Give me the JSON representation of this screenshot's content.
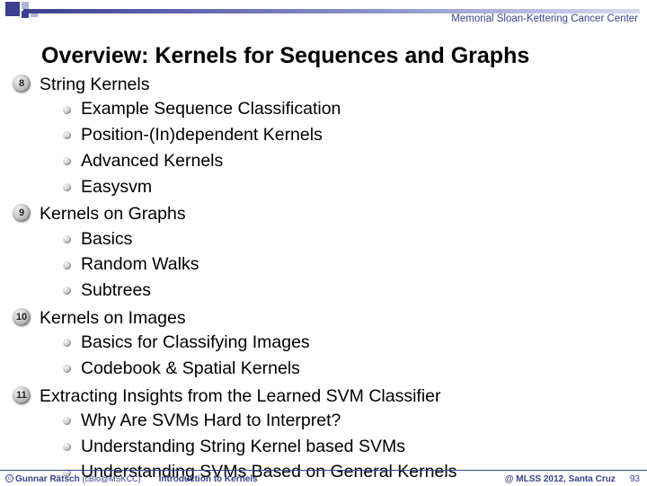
{
  "header": {
    "org": "Memorial Sloan-Kettering Cancer Center"
  },
  "title": "Overview: Kernels for Sequences and Graphs",
  "sections": [
    {
      "num": "8",
      "title": "String Kernels",
      "subs": [
        "Example Sequence Classification",
        "Position-(In)dependent Kernels",
        "Advanced Kernels",
        "Easysvm"
      ]
    },
    {
      "num": "9",
      "title": "Kernels on Graphs",
      "subs": [
        "Basics",
        "Random Walks",
        "Subtrees"
      ]
    },
    {
      "num": "10",
      "title": "Kernels on Images",
      "subs": [
        "Basics for Classifying Images",
        "Codebook & Spatial Kernels"
      ]
    },
    {
      "num": "11",
      "title": "Extracting Insights from the Learned SVM Classifier",
      "subs": [
        "Why Are SVMs Hard to Interpret?",
        "Understanding String Kernel based SVMs",
        "Understanding SVMs Based on General Kernels"
      ]
    }
  ],
  "footer": {
    "author": "Gunnar Rätsch",
    "affil": "(cBio@MSKCC)",
    "talk": "Introduction to Kernels",
    "venue": "@ MLSS 2012, Santa Cruz",
    "page": "93"
  },
  "colors": {
    "theme": "#3b3f8f",
    "theme_light": "#b0b3d8"
  }
}
